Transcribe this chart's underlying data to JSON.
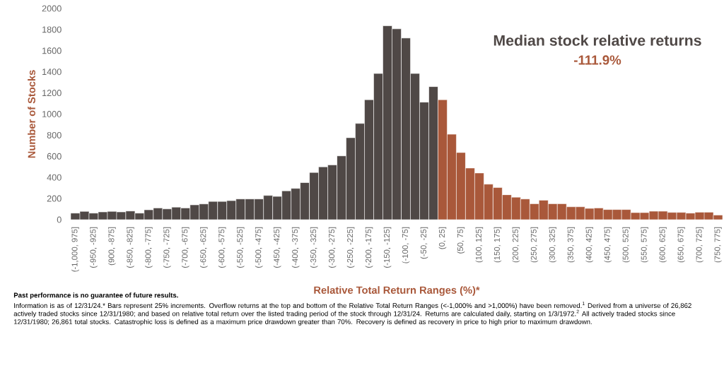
{
  "chart_data": {
    "type": "bar",
    "title": "Median stock relative returns",
    "subtitle": "-111.9%",
    "xlabel": "Relative Total Return Ranges (%)*",
    "ylabel": "Number of Stocks",
    "categories": [
      "(-1,000, 975]",
      null,
      "(-950, -925]",
      null,
      "(900, -875]",
      null,
      "(-850, -825]",
      null,
      "(-800, -775]",
      null,
      "(-750, -725]",
      null,
      "(-700, -675]",
      null,
      "(-650, -625]",
      null,
      "(-600, -575]",
      null,
      "(-550, -525]",
      null,
      "(-500, -475]",
      null,
      "(-450, -425]",
      null,
      "(-400, -375]",
      null,
      "(-350, -325]",
      null,
      "(-300, -275]",
      null,
      "(-250, -225]",
      null,
      "(-200, -175]",
      null,
      "(-150, -125]",
      null,
      "(-100, -75]",
      null,
      "(-50, -25]",
      null,
      "(0, 25]",
      null,
      "(50, 75]",
      null,
      "(100, 125]",
      null,
      "(150, 175]",
      null,
      "(200, 225]",
      null,
      "(250, 275]",
      null,
      "(300, 325]",
      null,
      "(350, 375]",
      null,
      "(400, 425]",
      null,
      "(450, 475]",
      null,
      "(500, 525]",
      null,
      "(550, 575]",
      null,
      "(600, 625]",
      null,
      "(650, 675]",
      null,
      "(700, 725]",
      null,
      "(750, 775]"
    ],
    "values": [
      62,
      78,
      62,
      73,
      78,
      73,
      82,
      62,
      93,
      111,
      102,
      118,
      111,
      140,
      149,
      173,
      173,
      180,
      196,
      196,
      196,
      229,
      220,
      273,
      296,
      351,
      447,
      500,
      518,
      604,
      776,
      911,
      1136,
      1384,
      1836,
      1807,
      1720,
      1384,
      1113,
      1260,
      1136,
      809,
      636,
      489,
      442,
      336,
      304,
      236,
      213,
      196,
      151,
      184,
      151,
      151,
      122,
      122,
      107,
      111,
      96,
      96,
      96,
      67,
      67,
      80,
      80,
      69,
      69,
      62,
      71,
      71,
      44
    ],
    "colors": [
      "#4f4846",
      "#4f4846",
      "#4f4846",
      "#4f4846",
      "#4f4846",
      "#4f4846",
      "#4f4846",
      "#4f4846",
      "#4f4846",
      "#4f4846",
      "#4f4846",
      "#4f4846",
      "#4f4846",
      "#4f4846",
      "#4f4846",
      "#4f4846",
      "#4f4846",
      "#4f4846",
      "#4f4846",
      "#4f4846",
      "#4f4846",
      "#4f4846",
      "#4f4846",
      "#4f4846",
      "#4f4846",
      "#4f4846",
      "#4f4846",
      "#4f4846",
      "#4f4846",
      "#4f4846",
      "#4f4846",
      "#4f4846",
      "#4f4846",
      "#4f4846",
      "#4f4846",
      "#4f4846",
      "#4f4846",
      "#4f4846",
      "#4f4846",
      "#4f4846",
      "#a9583a",
      "#a9583a",
      "#a9583a",
      "#a9583a",
      "#a9583a",
      "#a9583a",
      "#a9583a",
      "#a9583a",
      "#a9583a",
      "#a9583a",
      "#a9583a",
      "#a9583a",
      "#a9583a",
      "#a9583a",
      "#a9583a",
      "#a9583a",
      "#a9583a",
      "#a9583a",
      "#a9583a",
      "#a9583a",
      "#a9583a",
      "#a9583a",
      "#a9583a",
      "#a9583a",
      "#a9583a",
      "#a9583a",
      "#a9583a",
      "#a9583a",
      "#a9583a",
      "#a9583a",
      "#a9583a"
    ],
    "ylim": [
      0,
      2000
    ],
    "yticks": [
      0,
      200,
      400,
      600,
      800,
      1000,
      1200,
      1400,
      1600,
      1800,
      2000
    ],
    "annotations": [
      "**Past performance is no guarantee of future results.**",
      "Information is as of 12/31/24.* Bars represent 25% increments. Overflow returns at the top and bottom of the Relative Total Return Ranges (<-1,000% and >1,000%) have been removed.$^{1}$ Derived from a universe of 26,862 actively traded stocks since 12/31/1980; and based on relative total return over the listed trading period of the stock through 12/31/24. Returns are calculated daily, starting on 1/3/1972.$^{2}$ All actively traded stocks since 12/31/1980; 26,861 total stocks. Catastrophic loss is defined as a maximum price drawdown greater than 70%. Recovery is defined as recovery in price to high prior to maximum drawdown."
    ]
  }
}
